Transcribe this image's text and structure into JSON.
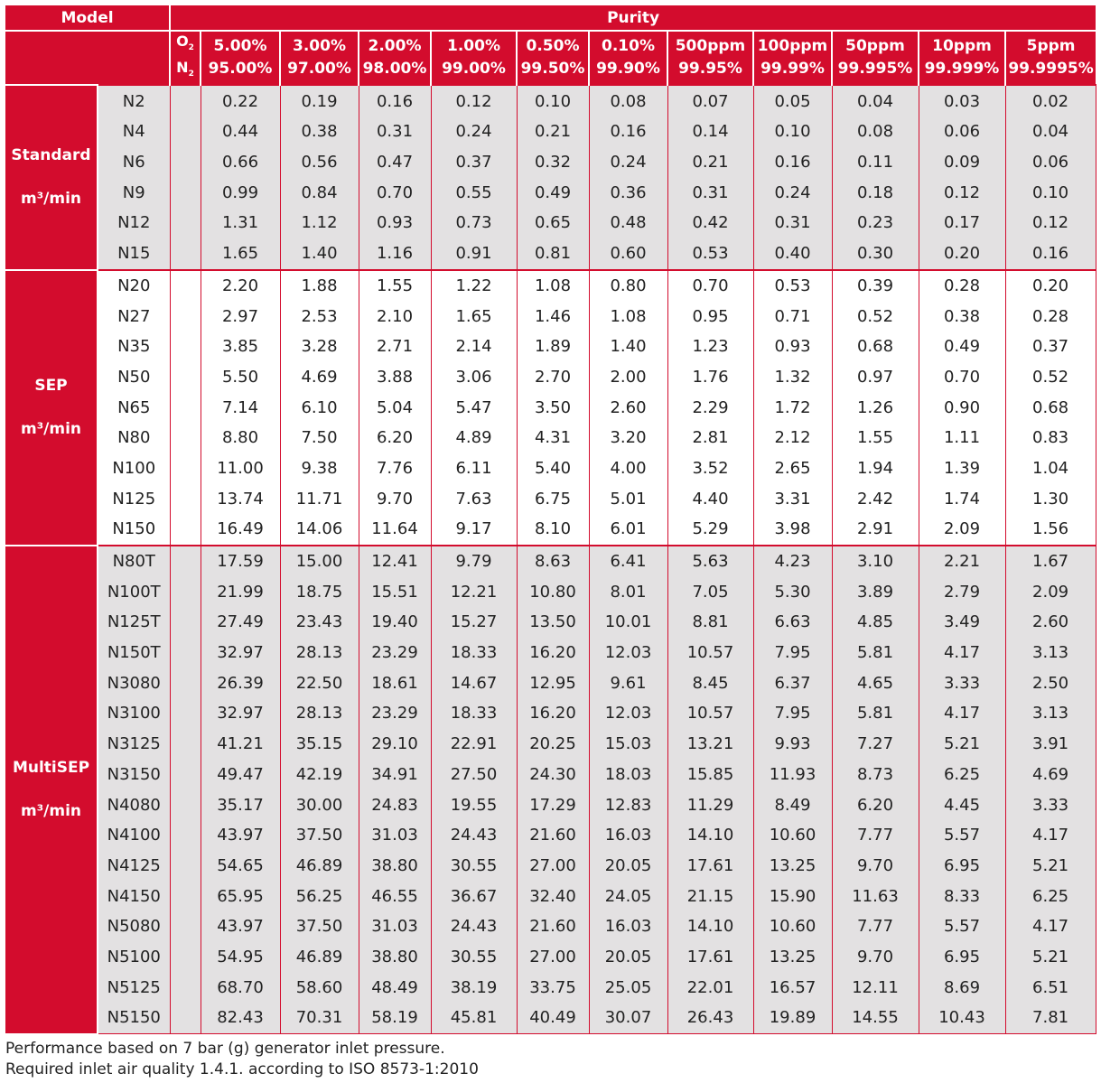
{
  "header": {
    "model_label": "Model",
    "purity_label": "Purity",
    "o2_label": "O",
    "o2_sub": "2",
    "n2_label": "N",
    "n2_sub": "2",
    "columns": [
      {
        "o2": "5.00%",
        "n2": "95.00%"
      },
      {
        "o2": "3.00%",
        "n2": "97.00%"
      },
      {
        "o2": "2.00%",
        "n2": "98.00%"
      },
      {
        "o2": "1.00%",
        "n2": "99.00%"
      },
      {
        "o2": "0.50%",
        "n2": "99.50%"
      },
      {
        "o2": "0.10%",
        "n2": "99.90%"
      },
      {
        "o2": "500ppm",
        "n2": "99.95%"
      },
      {
        "o2": "100ppm",
        "n2": "99.99%"
      },
      {
        "o2": "50ppm",
        "n2": "99.995%"
      },
      {
        "o2": "10ppm",
        "n2": "99.999%"
      },
      {
        "o2": "5ppm",
        "n2": "99.9995%"
      }
    ]
  },
  "groups": [
    {
      "name": "Standard",
      "unit": "m³/min",
      "rows": [
        {
          "model": "N2",
          "values": [
            "0.22",
            "0.19",
            "0.16",
            "0.12",
            "0.10",
            "0.08",
            "0.07",
            "0.05",
            "0.04",
            "0.03",
            "0.02"
          ]
        },
        {
          "model": "N4",
          "values": [
            "0.44",
            "0.38",
            "0.31",
            "0.24",
            "0.21",
            "0.16",
            "0.14",
            "0.10",
            "0.08",
            "0.06",
            "0.04"
          ]
        },
        {
          "model": "N6",
          "values": [
            "0.66",
            "0.56",
            "0.47",
            "0.37",
            "0.32",
            "0.24",
            "0.21",
            "0.16",
            "0.11",
            "0.09",
            "0.06"
          ]
        },
        {
          "model": "N9",
          "values": [
            "0.99",
            "0.84",
            "0.70",
            "0.55",
            "0.49",
            "0.36",
            "0.31",
            "0.24",
            "0.18",
            "0.12",
            "0.10"
          ]
        },
        {
          "model": "N12",
          "values": [
            "1.31",
            "1.12",
            "0.93",
            "0.73",
            "0.65",
            "0.48",
            "0.42",
            "0.31",
            "0.23",
            "0.17",
            "0.12"
          ]
        },
        {
          "model": "N15",
          "values": [
            "1.65",
            "1.40",
            "1.16",
            "0.91",
            "0.81",
            "0.60",
            "0.53",
            "0.40",
            "0.30",
            "0.20",
            "0.16"
          ]
        }
      ]
    },
    {
      "name": "SEP",
      "unit": "m³/min",
      "rows": [
        {
          "model": "N20",
          "values": [
            "2.20",
            "1.88",
            "1.55",
            "1.22",
            "1.08",
            "0.80",
            "0.70",
            "0.53",
            "0.39",
            "0.28",
            "0.20"
          ]
        },
        {
          "model": "N27",
          "values": [
            "2.97",
            "2.53",
            "2.10",
            "1.65",
            "1.46",
            "1.08",
            "0.95",
            "0.71",
            "0.52",
            "0.38",
            "0.28"
          ]
        },
        {
          "model": "N35",
          "values": [
            "3.85",
            "3.28",
            "2.71",
            "2.14",
            "1.89",
            "1.40",
            "1.23",
            "0.93",
            "0.68",
            "0.49",
            "0.37"
          ]
        },
        {
          "model": "N50",
          "values": [
            "5.50",
            "4.69",
            "3.88",
            "3.06",
            "2.70",
            "2.00",
            "1.76",
            "1.32",
            "0.97",
            "0.70",
            "0.52"
          ]
        },
        {
          "model": "N65",
          "values": [
            "7.14",
            "6.10",
            "5.04",
            "5.47",
            "3.50",
            "2.60",
            "2.29",
            "1.72",
            "1.26",
            "0.90",
            "0.68"
          ]
        },
        {
          "model": "N80",
          "values": [
            "8.80",
            "7.50",
            "6.20",
            "4.89",
            "4.31",
            "3.20",
            "2.81",
            "2.12",
            "1.55",
            "1.11",
            "0.83"
          ]
        },
        {
          "model": "N100",
          "values": [
            "11.00",
            "9.38",
            "7.76",
            "6.11",
            "5.40",
            "4.00",
            "3.52",
            "2.65",
            "1.94",
            "1.39",
            "1.04"
          ]
        },
        {
          "model": "N125",
          "values": [
            "13.74",
            "11.71",
            "9.70",
            "7.63",
            "6.75",
            "5.01",
            "4.40",
            "3.31",
            "2.42",
            "1.74",
            "1.30"
          ]
        },
        {
          "model": "N150",
          "values": [
            "16.49",
            "14.06",
            "11.64",
            "9.17",
            "8.10",
            "6.01",
            "5.29",
            "3.98",
            "2.91",
            "2.09",
            "1.56"
          ]
        }
      ]
    },
    {
      "name": "MultiSEP",
      "unit": "m³/min",
      "rows": [
        {
          "model": "N80T",
          "values": [
            "17.59",
            "15.00",
            "12.41",
            "9.79",
            "8.63",
            "6.41",
            "5.63",
            "4.23",
            "3.10",
            "2.21",
            "1.67"
          ]
        },
        {
          "model": "N100T",
          "values": [
            "21.99",
            "18.75",
            "15.51",
            "12.21",
            "10.80",
            "8.01",
            "7.05",
            "5.30",
            "3.89",
            "2.79",
            "2.09"
          ]
        },
        {
          "model": "N125T",
          "values": [
            "27.49",
            "23.43",
            "19.40",
            "15.27",
            "13.50",
            "10.01",
            "8.81",
            "6.63",
            "4.85",
            "3.49",
            "2.60"
          ]
        },
        {
          "model": "N150T",
          "values": [
            "32.97",
            "28.13",
            "23.29",
            "18.33",
            "16.20",
            "12.03",
            "10.57",
            "7.95",
            "5.81",
            "4.17",
            "3.13"
          ]
        },
        {
          "model": "N3080",
          "values": [
            "26.39",
            "22.50",
            "18.61",
            "14.67",
            "12.95",
            "9.61",
            "8.45",
            "6.37",
            "4.65",
            "3.33",
            "2.50"
          ]
        },
        {
          "model": "N3100",
          "values": [
            "32.97",
            "28.13",
            "23.29",
            "18.33",
            "16.20",
            "12.03",
            "10.57",
            "7.95",
            "5.81",
            "4.17",
            "3.13"
          ]
        },
        {
          "model": "N3125",
          "values": [
            "41.21",
            "35.15",
            "29.10",
            "22.91",
            "20.25",
            "15.03",
            "13.21",
            "9.93",
            "7.27",
            "5.21",
            "3.91"
          ]
        },
        {
          "model": "N3150",
          "values": [
            "49.47",
            "42.19",
            "34.91",
            "27.50",
            "24.30",
            "18.03",
            "15.85",
            "11.93",
            "8.73",
            "6.25",
            "4.69"
          ]
        },
        {
          "model": "N4080",
          "values": [
            "35.17",
            "30.00",
            "24.83",
            "19.55",
            "17.29",
            "12.83",
            "11.29",
            "8.49",
            "6.20",
            "4.45",
            "3.33"
          ]
        },
        {
          "model": "N4100",
          "values": [
            "43.97",
            "37.50",
            "31.03",
            "24.43",
            "21.60",
            "16.03",
            "14.10",
            "10.60",
            "7.77",
            "5.57",
            "4.17"
          ]
        },
        {
          "model": "N4125",
          "values": [
            "54.65",
            "46.89",
            "38.80",
            "30.55",
            "27.00",
            "20.05",
            "17.61",
            "13.25",
            "9.70",
            "6.95",
            "5.21"
          ]
        },
        {
          "model": "N4150",
          "values": [
            "65.95",
            "56.25",
            "46.55",
            "36.67",
            "32.40",
            "24.05",
            "21.15",
            "15.90",
            "11.63",
            "8.33",
            "6.25"
          ]
        },
        {
          "model": "N5080",
          "values": [
            "43.97",
            "37.50",
            "31.03",
            "24.43",
            "21.60",
            "16.03",
            "14.10",
            "10.60",
            "7.77",
            "5.57",
            "4.17"
          ]
        },
        {
          "model": "N5100",
          "values": [
            "54.95",
            "46.89",
            "38.80",
            "30.55",
            "27.00",
            "20.05",
            "17.61",
            "13.25",
            "9.70",
            "6.95",
            "5.21"
          ]
        },
        {
          "model": "N5125",
          "values": [
            "68.70",
            "58.60",
            "48.49",
            "38.19",
            "33.75",
            "25.05",
            "22.01",
            "16.57",
            "12.11",
            "8.69",
            "6.51"
          ]
        },
        {
          "model": "N5150",
          "values": [
            "82.43",
            "70.31",
            "58.19",
            "45.81",
            "40.49",
            "30.07",
            "26.43",
            "19.89",
            "14.55",
            "10.43",
            "7.81"
          ]
        }
      ]
    }
  ],
  "notes": [
    "Performance based on 7 bar (g) generator inlet pressure.",
    "Required inlet air quality 1.4.1. according to ISO 8573-1:2010"
  ],
  "colors": {
    "accent": "#d30c2d",
    "grey_band": "#e3e1e2",
    "white_band": "#ffffff"
  }
}
